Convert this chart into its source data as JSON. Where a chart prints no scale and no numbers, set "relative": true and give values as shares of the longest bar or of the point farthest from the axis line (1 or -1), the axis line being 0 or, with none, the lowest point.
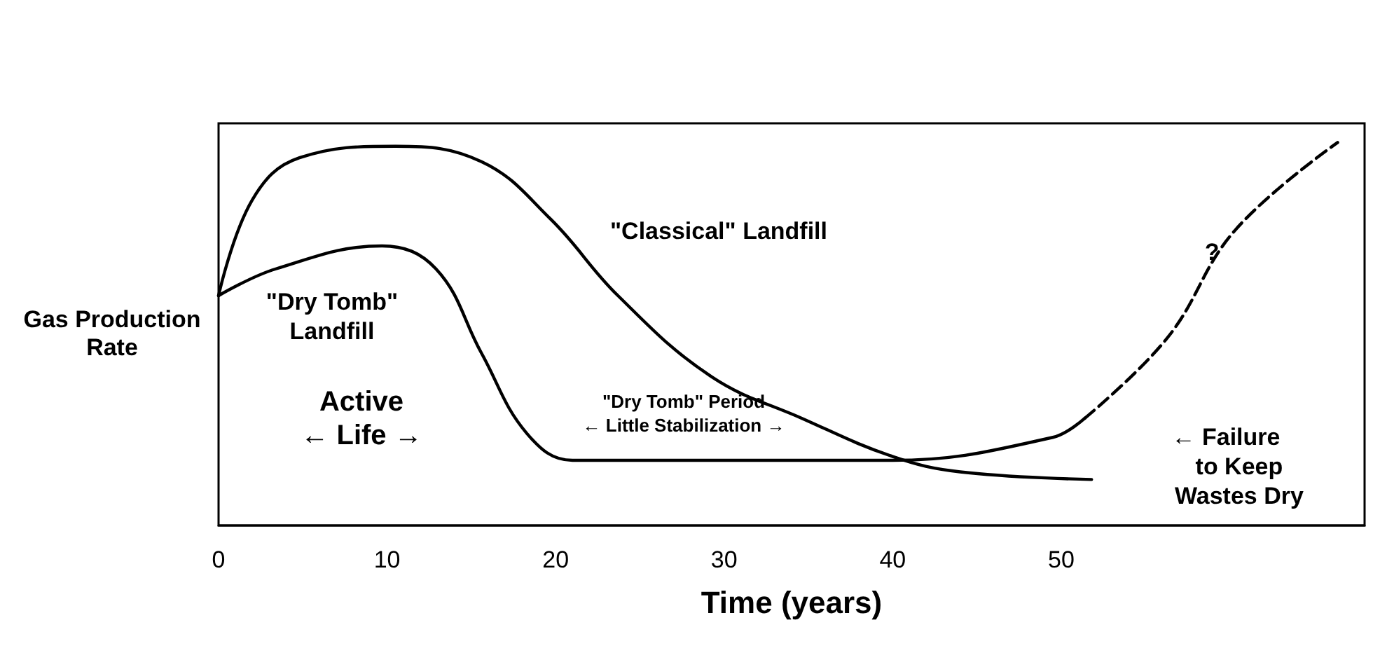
{
  "chart_data": {
    "type": "line",
    "xlabel": "Time (years)",
    "ylabel": "Gas Production\nRate",
    "relative": true,
    "xlim": [
      0,
      68
    ],
    "xticks": [
      0,
      10,
      20,
      30,
      40,
      50
    ],
    "series": [
      {
        "color": "#000000",
        "x": [
          0,
          2,
          4.8,
          10.5,
          15.6,
          19.7,
          23.7,
          29.2,
          34.6,
          40,
          44,
          51.8
        ],
        "values": [
          0.6,
          0.85,
          0.96,
          0.99,
          0.95,
          0.8,
          0.6,
          0.39,
          0.28,
          0.18,
          0.14,
          0.12
        ]
      },
      {
        "color": "#000000",
        "x": [
          0,
          3.4,
          9.7,
          12.9,
          15.6,
          18.3,
          21,
          30,
          40,
          49.5,
          51.4
        ],
        "values": [
          0.6,
          0.67,
          0.73,
          0.67,
          0.45,
          0.24,
          0.17,
          0.17,
          0.17,
          0.23,
          0.28
        ]
      },
      {
        "color": "#000000",
        "line_style": "dashed",
        "x": [
          51.4,
          56.3,
          60.3,
          66.4
        ],
        "values": [
          0.28,
          0.49,
          0.77,
          1
        ]
      }
    ],
    "annotations": [
      "\"Classical\" Landfill",
      "\"Dry Tomb\"\nLandfill",
      "Active\n← Life →",
      "\"Dry Tomb\" Period\n← Little Stabilization →",
      "?",
      "← Failure\n    to Keep\n    Wastes Dry"
    ]
  }
}
